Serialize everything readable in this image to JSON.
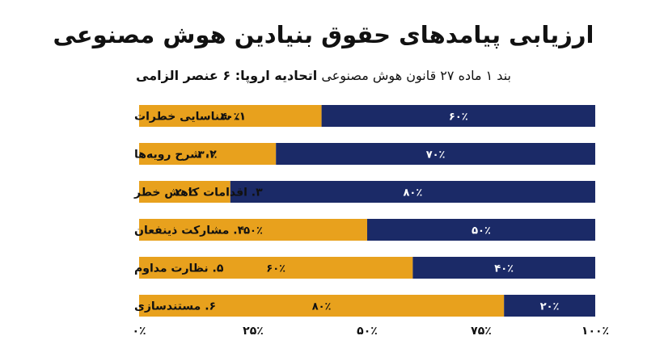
{
  "title": "ارزیابی پیامدهای حقوق بنیادین هوش مصنوعی",
  "subtitle_normal": "بند ۱ ماده ۲۷ قانون هوش مصنوعی",
  "subtitle_bold": "اتحادیه اروپا: ۶ عنصر الزامی",
  "colors": {
    "orange": "#E8A11D",
    "navy": "#1B2A67",
    "white": "#ffffff"
  },
  "chart_data": {
    "type": "bar",
    "orientation": "horizontal",
    "stacked": true,
    "title": "ارزیابی پیامدهای حقوق بنیادین هوش مصنوعی",
    "categories": [
      "۱. شناسایی خطرات",
      "۲. شرح رویه‌ها",
      "۳. اقدامات کاهش خطر",
      "۴. مشارکت ذینفعان",
      "۵. نظارت مداوم",
      "۶. مستندسازی"
    ],
    "series": [
      {
        "values": [
          40,
          30,
          20,
          50,
          60,
          80
        ],
        "value_labels": [
          "۴۰٪",
          "۳۰٪",
          "۲۰٪",
          "۵۰٪",
          "۶۰٪",
          "۸۰٪"
        ],
        "color": "#E8A11D"
      },
      {
        "values": [
          60,
          70,
          80,
          50,
          40,
          20
        ],
        "value_labels": [
          "۶۰٪",
          "۷۰٪",
          "۸۰٪",
          "۵۰٪",
          "۴۰٪",
          "۲۰٪"
        ],
        "color": "#1B2A67"
      }
    ],
    "xlim": [
      0,
      100
    ],
    "ticks": [
      0,
      25,
      50,
      75,
      100
    ],
    "tick_labels": [
      "۰٪",
      "۲۵٪",
      "۵۰٪",
      "۷۵٪",
      "۱۰۰٪"
    ],
    "grid": false,
    "legend": "none"
  }
}
